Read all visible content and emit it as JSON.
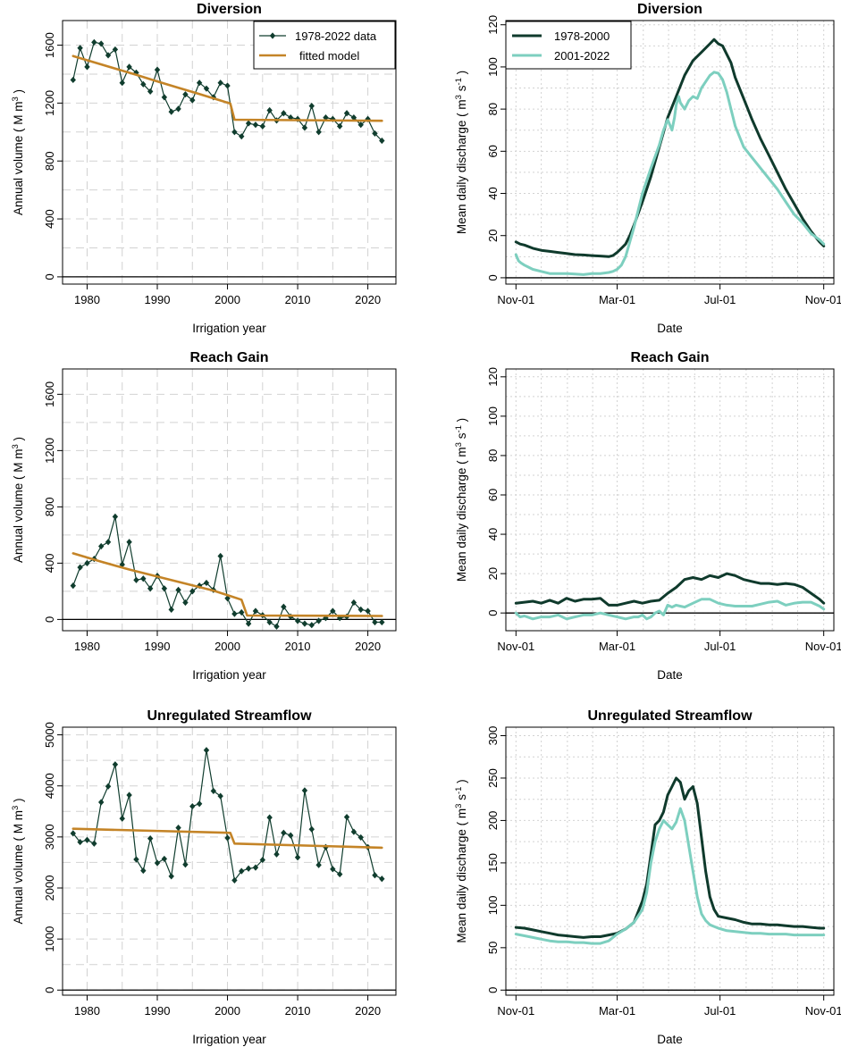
{
  "figure": {
    "colors": {
      "data": "#103d2e",
      "fit": "#c48427",
      "early": "#0f3a2c",
      "late": "#7dcfbf"
    },
    "legend_annual": [
      "1978-2022 data",
      "fitted model"
    ],
    "legend_daily": [
      "1978-2000",
      "2001-2022"
    ],
    "daily_xticks": [
      "Nov-01",
      "Mar-01",
      "Jul-01",
      "Nov-01"
    ]
  },
  "chart_data": [
    {
      "id": "div_annual",
      "type": "line",
      "title": "Diversion",
      "xlabel": "Irrigation year",
      "ylabel": "Annual volume ( M m^3 )",
      "xlim": [
        1976.5,
        2024
      ],
      "ylim": [
        -50,
        1770
      ],
      "xticks": [
        1980,
        1990,
        2000,
        2010,
        2020
      ],
      "yticks": [
        0,
        400,
        800,
        1200,
        1600
      ],
      "grid_y": [
        0,
        200,
        400,
        600,
        800,
        1000,
        1200,
        1400,
        1600
      ],
      "legend": "top-right",
      "series": [
        {
          "name": "1978-2022 data",
          "x_start": 1978,
          "values": [
            1360,
            1580,
            1450,
            1620,
            1610,
            1530,
            1570,
            1340,
            1450,
            1410,
            1330,
            1280,
            1430,
            1240,
            1140,
            1160,
            1260,
            1220,
            1340,
            1300,
            1240,
            1340,
            1320,
            1000,
            970,
            1060,
            1050,
            1040,
            1150,
            1080,
            1130,
            1100,
            1090,
            1030,
            1180,
            1000,
            1100,
            1090,
            1040,
            1130,
            1100,
            1050,
            1090,
            990,
            940
          ]
        },
        {
          "name": "fitted model",
          "x": [
            1978,
            1981,
            1984,
            1987,
            1990,
            1993,
            1996,
            1999,
            2000.4,
            2001,
            2022
          ],
          "values": [
            1525,
            1482,
            1438,
            1395,
            1350,
            1306,
            1262,
            1218,
            1197,
            1085,
            1078
          ]
        }
      ]
    },
    {
      "id": "div_daily",
      "type": "line",
      "title": "Diversion",
      "xlabel": "Date",
      "ylabel": "Mean daily discharge ( m^3 s^-1 )",
      "xlim": [
        -12,
        377
      ],
      "ylim": [
        -3,
        122
      ],
      "yticks": [
        0,
        20,
        40,
        60,
        80,
        100,
        120
      ],
      "grid_y": [
        0,
        10,
        20,
        30,
        40,
        50,
        60,
        70,
        80,
        90,
        100,
        110,
        120
      ],
      "legend": "top-left",
      "series": [
        {
          "name": "1978-2000",
          "x": [
            0,
            5,
            10,
            20,
            30,
            40,
            50,
            60,
            70,
            80,
            90,
            100,
            110,
            115,
            120,
            125,
            130,
            135,
            140,
            150,
            160,
            170,
            180,
            190,
            200,
            210,
            220,
            230,
            235,
            240,
            245,
            250,
            255,
            260,
            270,
            280,
            290,
            300,
            310,
            320,
            330,
            340,
            350,
            360,
            365
          ],
          "values": [
            17,
            16,
            15.5,
            14,
            13,
            12.5,
            12,
            11.5,
            11,
            10.8,
            10.5,
            10.3,
            10,
            10.5,
            12,
            14,
            16,
            20,
            25,
            36,
            48,
            62,
            76,
            86,
            96,
            103,
            107,
            111,
            113,
            111,
            110,
            106,
            102,
            95,
            85,
            75,
            66,
            58,
            50,
            42,
            35,
            28,
            22,
            17,
            15
          ]
        },
        {
          "name": "2001-2022",
          "x": [
            0,
            3,
            6,
            10,
            15,
            20,
            30,
            40,
            50,
            60,
            70,
            80,
            90,
            100,
            110,
            115,
            120,
            125,
            130,
            135,
            140,
            145,
            150,
            160,
            170,
            175,
            180,
            185,
            188,
            190,
            193,
            195,
            200,
            205,
            210,
            215,
            220,
            225,
            230,
            235,
            240,
            245,
            250,
            255,
            260,
            270,
            280,
            290,
            300,
            310,
            320,
            330,
            340,
            350,
            360,
            365
          ],
          "values": [
            11,
            8,
            7,
            6,
            5,
            4,
            3,
            2,
            2,
            2,
            1.8,
            1.5,
            2,
            2,
            2.5,
            3,
            4,
            6,
            10,
            17,
            24,
            32,
            40,
            52,
            63,
            70,
            75,
            70,
            76,
            82,
            86,
            83,
            80,
            84,
            86,
            85,
            90,
            93,
            96,
            97.5,
            97,
            94,
            88,
            80,
            72,
            62,
            57,
            52,
            47,
            42,
            36,
            30,
            26,
            21,
            18,
            16
          ]
        }
      ]
    },
    {
      "id": "rg_annual",
      "type": "line",
      "title": "Reach Gain",
      "xlabel": "Irrigation year",
      "ylabel": "Annual volume ( M m^3 )",
      "xlim": [
        1976.5,
        2024
      ],
      "ylim": [
        -80,
        1780
      ],
      "xticks": [
        1980,
        1990,
        2000,
        2010,
        2020
      ],
      "yticks": [
        0,
        400,
        800,
        1200,
        1600
      ],
      "grid_y": [
        0,
        200,
        400,
        600,
        800,
        1000,
        1200,
        1400,
        1600
      ],
      "series": [
        {
          "name": "1978-2022 data",
          "x_start": 1978,
          "values": [
            240,
            370,
            400,
            430,
            520,
            550,
            730,
            390,
            550,
            280,
            290,
            220,
            310,
            220,
            70,
            210,
            120,
            200,
            240,
            260,
            210,
            450,
            150,
            40,
            50,
            -30,
            60,
            30,
            -20,
            -50,
            90,
            20,
            -10,
            -30,
            -40,
            -10,
            10,
            60,
            10,
            20,
            120,
            70,
            60,
            -20,
            -20
          ]
        },
        {
          "name": "fitted model",
          "x": [
            1978,
            1982,
            1986,
            1990,
            1994,
            1998,
            2002,
            2002.8,
            2022
          ],
          "values": [
            470,
            410,
            355,
            305,
            255,
            205,
            140,
            28,
            25
          ]
        }
      ]
    },
    {
      "id": "rg_daily",
      "type": "line",
      "title": "Reach Gain",
      "xlabel": "Date",
      "ylabel": "Mean daily discharge ( m^3 s^-1 )",
      "xlim": [
        -12,
        377
      ],
      "ylim": [
        -9,
        124
      ],
      "yticks": [
        0,
        20,
        40,
        60,
        80,
        100,
        120
      ],
      "grid_y": [
        0,
        10,
        20,
        30,
        40,
        50,
        60,
        70,
        80,
        90,
        100,
        110,
        120
      ],
      "series": [
        {
          "name": "1978-2000",
          "x": [
            0,
            10,
            20,
            30,
            40,
            50,
            60,
            70,
            80,
            90,
            100,
            110,
            120,
            130,
            140,
            150,
            160,
            170,
            180,
            190,
            200,
            210,
            220,
            230,
            240,
            250,
            260,
            270,
            280,
            290,
            300,
            310,
            320,
            330,
            340,
            350,
            360,
            365
          ],
          "values": [
            5,
            5.5,
            6,
            5,
            6.5,
            5,
            7.5,
            6,
            7,
            7,
            7.5,
            4,
            4,
            5,
            6,
            5,
            6,
            6.5,
            10,
            13,
            17,
            18,
            17,
            19,
            18,
            20,
            19,
            17,
            16,
            15,
            15,
            14.5,
            15,
            14.5,
            13,
            10,
            7,
            5
          ]
        },
        {
          "name": "2001-2022",
          "x": [
            0,
            5,
            10,
            20,
            30,
            40,
            50,
            60,
            70,
            80,
            90,
            100,
            110,
            120,
            130,
            140,
            145,
            150,
            155,
            160,
            165,
            170,
            175,
            180,
            185,
            190,
            200,
            210,
            220,
            230,
            240,
            250,
            260,
            270,
            280,
            290,
            300,
            310,
            320,
            330,
            340,
            350,
            360,
            365
          ],
          "values": [
            0,
            -2,
            -1.5,
            -3,
            -2,
            -2,
            -1,
            -3,
            -2,
            -1,
            -1,
            0,
            -1,
            -2,
            -3,
            -2,
            -2,
            -1,
            -3,
            -2,
            0,
            1,
            -1,
            4,
            3,
            4,
            3,
            5,
            7,
            7,
            5,
            4,
            3.5,
            3.5,
            3.5,
            4.5,
            5.5,
            6,
            4,
            5,
            5.5,
            5.5,
            3.5,
            2
          ]
        }
      ]
    },
    {
      "id": "us_annual",
      "type": "line",
      "title": "Unregulated Streamflow",
      "xlabel": "Irrigation year",
      "ylabel": "Annual volume ( M m^3 )",
      "xlim": [
        1976.5,
        2024
      ],
      "ylim": [
        -100,
        5150
      ],
      "xticks": [
        1980,
        1990,
        2000,
        2010,
        2020
      ],
      "yticks": [
        0,
        1000,
        2000,
        3000,
        4000,
        5000
      ],
      "grid_y": [
        0,
        500,
        1000,
        1500,
        2000,
        2500,
        3000,
        3500,
        4000,
        4500,
        5000
      ],
      "series": [
        {
          "name": "1978-2022 data",
          "x_start": 1978,
          "values": [
            3070,
            2900,
            2940,
            2870,
            3680,
            3990,
            4420,
            3360,
            3820,
            2560,
            2340,
            2970,
            2490,
            2570,
            2230,
            3180,
            2460,
            3600,
            3650,
            4700,
            3900,
            3800,
            2980,
            2150,
            2330,
            2380,
            2400,
            2550,
            3380,
            2660,
            3080,
            3030,
            2600,
            3910,
            3150,
            2450,
            2800,
            2370,
            2270,
            3390,
            3100,
            2990,
            2800,
            2250,
            2180
          ]
        },
        {
          "name": "fitted model",
          "x": [
            1978,
            2000.4,
            2001,
            2022
          ],
          "values": [
            3160,
            3080,
            2870,
            2790
          ]
        }
      ]
    },
    {
      "id": "us_daily",
      "type": "line",
      "title": "Unregulated Streamflow",
      "xlabel": "Date",
      "ylabel": "Mean daily discharge ( m^3 s^-1 )",
      "xlim": [
        -12,
        377
      ],
      "ylim": [
        -6,
        310
      ],
      "yticks": [
        0,
        50,
        100,
        150,
        200,
        250,
        300
      ],
      "grid_y": [
        0,
        25,
        50,
        75,
        100,
        125,
        150,
        175,
        200,
        225,
        250,
        275,
        300
      ],
      "series": [
        {
          "name": "1978-2000",
          "x": [
            0,
            10,
            20,
            30,
            40,
            50,
            60,
            70,
            80,
            90,
            100,
            110,
            120,
            130,
            140,
            150,
            155,
            160,
            165,
            170,
            175,
            180,
            185,
            190,
            195,
            200,
            205,
            210,
            215,
            220,
            225,
            230,
            235,
            240,
            250,
            260,
            270,
            280,
            290,
            300,
            310,
            320,
            330,
            340,
            350,
            360,
            365
          ],
          "values": [
            74,
            73,
            71,
            69,
            67,
            65,
            64,
            63,
            62,
            63,
            63,
            65,
            67,
            72,
            80,
            105,
            125,
            160,
            195,
            200,
            210,
            230,
            240,
            250,
            245,
            225,
            235,
            240,
            220,
            180,
            140,
            110,
            95,
            87,
            85,
            83,
            80,
            78,
            78,
            77,
            77,
            76,
            75,
            75,
            74,
            73,
            73
          ]
        },
        {
          "name": "2001-2022",
          "x": [
            0,
            10,
            20,
            30,
            40,
            50,
            60,
            70,
            80,
            90,
            100,
            110,
            120,
            130,
            140,
            150,
            155,
            160,
            165,
            170,
            175,
            180,
            185,
            190,
            195,
            200,
            205,
            210,
            215,
            220,
            225,
            230,
            235,
            240,
            250,
            260,
            270,
            280,
            290,
            300,
            310,
            320,
            330,
            340,
            350,
            360,
            365
          ],
          "values": [
            66,
            64,
            62,
            60,
            58,
            57,
            57,
            56,
            56,
            55,
            55,
            58,
            66,
            72,
            80,
            95,
            115,
            150,
            175,
            190,
            200,
            195,
            190,
            198,
            214,
            200,
            170,
            140,
            110,
            90,
            82,
            77,
            75,
            73,
            70,
            69,
            68,
            67,
            67,
            66,
            66,
            66,
            65,
            65,
            65,
            65,
            65
          ]
        }
      ]
    }
  ]
}
